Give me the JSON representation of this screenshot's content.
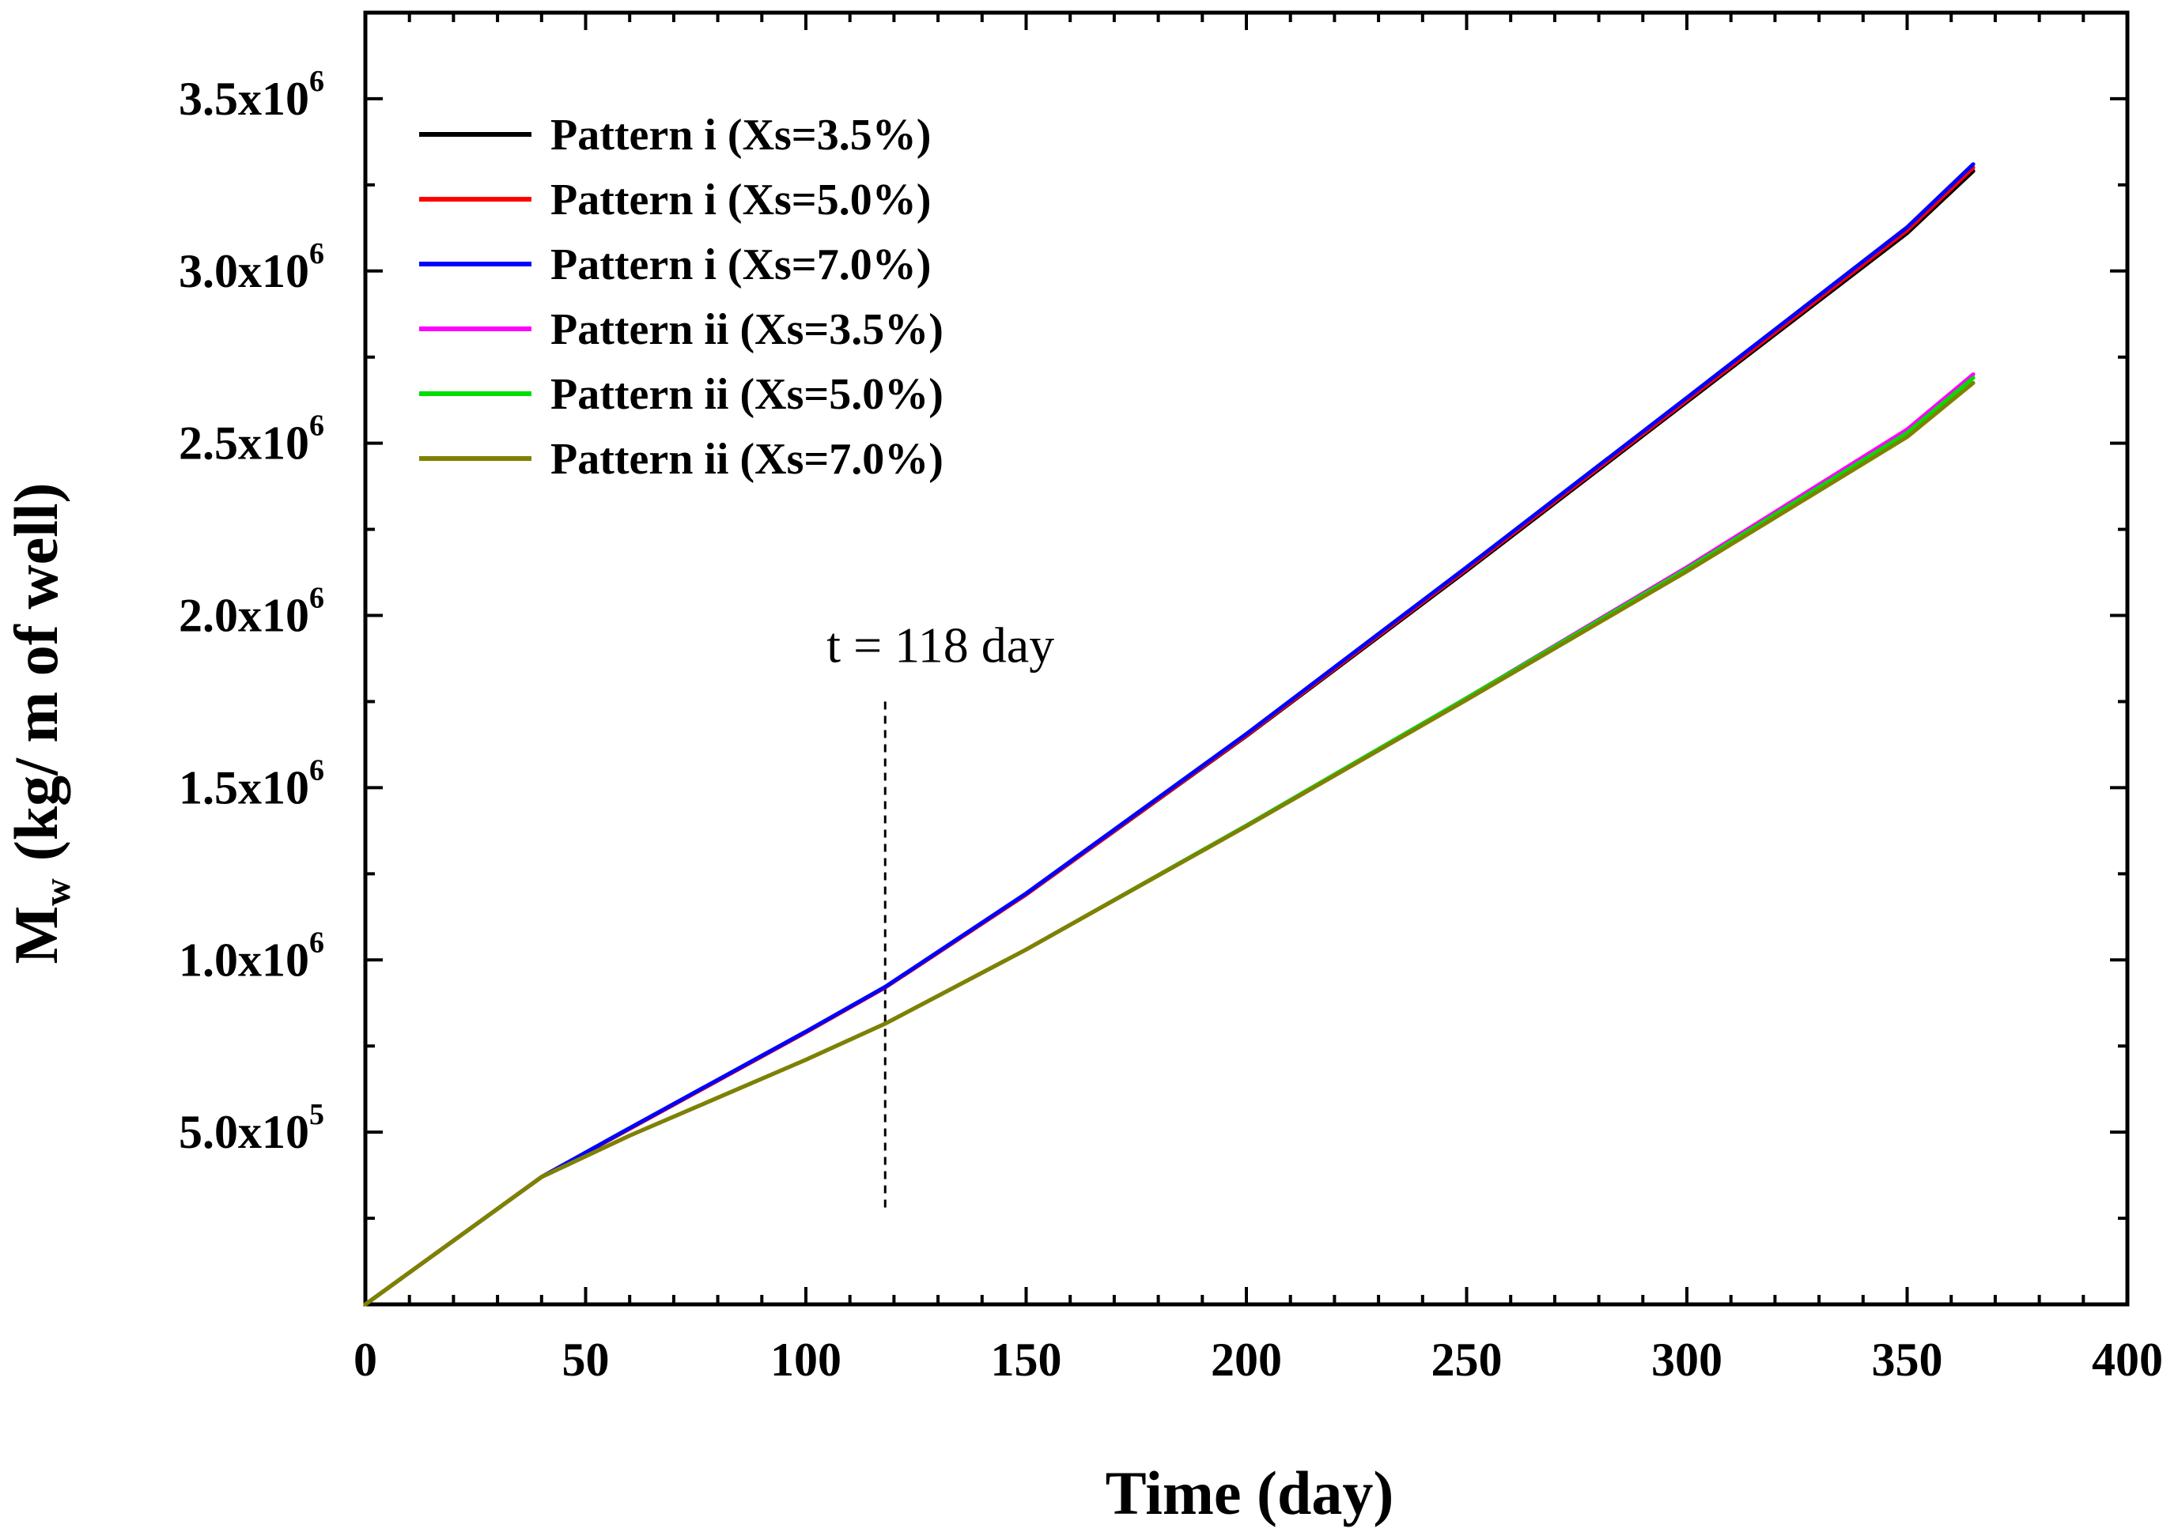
{
  "chart_data": {
    "type": "line",
    "title": "",
    "xlabel": "Time (day)",
    "ylabel": {
      "symbol": "M",
      "subscript": "w",
      "units": "(kg/ m of well)"
    },
    "xlim": [
      0,
      400
    ],
    "ylim": [
      0,
      3750000
    ],
    "x_ticks": [
      {
        "value": 0,
        "label": "0"
      },
      {
        "value": 50,
        "label": "50"
      },
      {
        "value": 100,
        "label": "100"
      },
      {
        "value": 150,
        "label": "150"
      },
      {
        "value": 200,
        "label": "200"
      },
      {
        "value": 250,
        "label": "250"
      },
      {
        "value": 300,
        "label": "300"
      },
      {
        "value": 350,
        "label": "350"
      },
      {
        "value": 400,
        "label": "400"
      }
    ],
    "y_ticks": [
      {
        "value": 500000,
        "mantissa": "5.0x10",
        "exponent": "5"
      },
      {
        "value": 1000000,
        "mantissa": "1.0x10",
        "exponent": "6"
      },
      {
        "value": 1500000,
        "mantissa": "1.5x10",
        "exponent": "6"
      },
      {
        "value": 2000000,
        "mantissa": "2.0x10",
        "exponent": "6"
      },
      {
        "value": 2500000,
        "mantissa": "2.5x10",
        "exponent": "6"
      },
      {
        "value": 3000000,
        "mantissa": "3.0x10",
        "exponent": "6"
      },
      {
        "value": 3500000,
        "mantissa": "3.5x10",
        "exponent": "6"
      }
    ],
    "grid": false,
    "legend_position": "top-left",
    "series": [
      {
        "name": "Pattern i (Xs=3.5%)",
        "color": "#000000",
        "x": [
          0,
          40,
          60,
          80,
          100,
          118,
          150,
          200,
          250,
          300,
          350,
          365
        ],
        "y": [
          0,
          370000,
          510000,
          650000,
          790000,
          920000,
          1190000,
          1650000,
          2130000,
          2620000,
          3110000,
          3290000
        ]
      },
      {
        "name": "Pattern i (Xs=5.0%)",
        "color": "#ff0000",
        "x": [
          0,
          40,
          60,
          80,
          100,
          118,
          150,
          200,
          250,
          300,
          350,
          365
        ],
        "y": [
          0,
          370000,
          510000,
          650000,
          790000,
          920000,
          1190000,
          1652000,
          2135000,
          2625000,
          3118000,
          3300000
        ]
      },
      {
        "name": "Pattern i (Xs=7.0%)",
        "color": "#0000ff",
        "x": [
          0,
          40,
          60,
          80,
          100,
          118,
          150,
          200,
          250,
          300,
          350,
          365
        ],
        "y": [
          0,
          370000,
          512000,
          652000,
          792000,
          922000,
          1193000,
          1656000,
          2140000,
          2632000,
          3127000,
          3310000
        ]
      },
      {
        "name": "Pattern ii (Xs=3.5%)",
        "color": "#ff00ff",
        "x": [
          0,
          40,
          60,
          80,
          100,
          118,
          150,
          200,
          250,
          300,
          350,
          365
        ],
        "y": [
          0,
          370000,
          490000,
          600000,
          710000,
          815000,
          1030000,
          1390000,
          1760000,
          2140000,
          2540000,
          2700000
        ]
      },
      {
        "name": "Pattern ii (Xs=5.0%)",
        "color": "#00dd00",
        "x": [
          0,
          40,
          60,
          80,
          100,
          118,
          150,
          200,
          250,
          300,
          350,
          365
        ],
        "y": [
          0,
          370000,
          490000,
          600000,
          710000,
          815000,
          1030000,
          1390000,
          1760000,
          2135000,
          2530000,
          2690000
        ]
      },
      {
        "name": "Pattern ii (Xs=7.0%)",
        "color": "#808000",
        "x": [
          0,
          40,
          60,
          80,
          100,
          118,
          150,
          200,
          250,
          300,
          350,
          365
        ],
        "y": [
          0,
          370000,
          490000,
          600000,
          710000,
          815000,
          1030000,
          1388000,
          1755000,
          2128000,
          2518000,
          2675000
        ]
      }
    ],
    "annotations": [
      {
        "text": "t = 118 day",
        "x": 118,
        "y_from": 280000,
        "y_to": 1750000,
        "style": "dashed"
      }
    ]
  }
}
